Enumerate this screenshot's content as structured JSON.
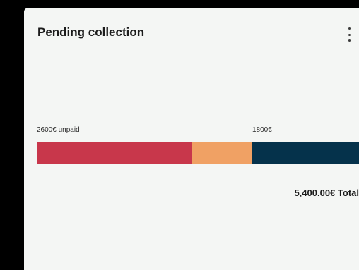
{
  "card": {
    "title": "Pending collection",
    "menu_icon": "more-vertical-icon"
  },
  "bar": {
    "label_unpaid": "2600€ unpaid",
    "label_mid": "1800€",
    "segments": [
      {
        "color": "#c8374b"
      },
      {
        "color": "#f0a164"
      },
      {
        "color": "#05324b"
      }
    ]
  },
  "total": {
    "text": "5,400.00€ Total"
  }
}
